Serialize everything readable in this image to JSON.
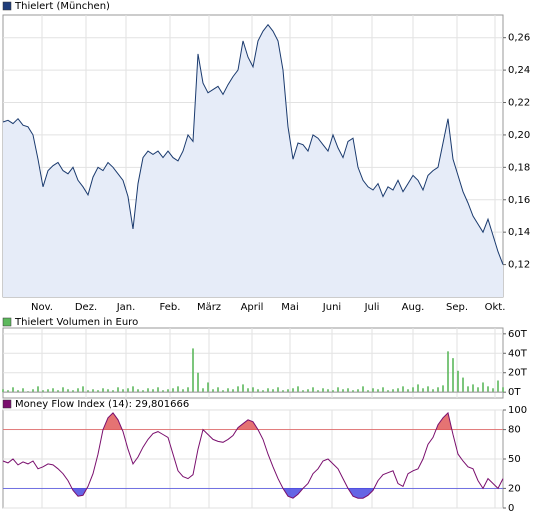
{
  "chart_data": [
    {
      "type": "area",
      "legend": "Thielert (München)",
      "color": "#1a3a6e",
      "fill": "#e6ecf8",
      "legend_color": "#1f3d7a",
      "xlim": [
        0,
        100
      ],
      "ylim": [
        0.1,
        0.274
      ],
      "xticks": [
        {
          "value": 7.8,
          "label": "Nov."
        },
        {
          "value": 16.6,
          "label": "Dez."
        },
        {
          "value": 24.6,
          "label": "Jan."
        },
        {
          "value": 33.4,
          "label": "Feb."
        },
        {
          "value": 41.2,
          "label": "März"
        },
        {
          "value": 49.8,
          "label": "April"
        },
        {
          "value": 57.4,
          "label": "Mai"
        },
        {
          "value": 65.8,
          "label": "Juni"
        },
        {
          "value": 73.8,
          "label": "Juli"
        },
        {
          "value": 82,
          "label": "Aug."
        },
        {
          "value": 90.8,
          "label": "Sep."
        },
        {
          "value": 98.4,
          "label": "Okt."
        }
      ],
      "yticks": [
        {
          "value": 0.12,
          "label": "0,12"
        },
        {
          "value": 0.14,
          "label": "0,14"
        },
        {
          "value": 0.16,
          "label": "0,16"
        },
        {
          "value": 0.18,
          "label": "0,18"
        },
        {
          "value": 0.2,
          "label": "0,20"
        },
        {
          "value": 0.22,
          "label": "0,22"
        },
        {
          "value": 0.24,
          "label": "0,24"
        },
        {
          "value": 0.26,
          "label": "0,26"
        }
      ],
      "values": [
        0.208,
        0.209,
        0.207,
        0.21,
        0.206,
        0.205,
        0.2,
        0.185,
        0.168,
        0.178,
        0.181,
        0.183,
        0.178,
        0.176,
        0.18,
        0.172,
        0.168,
        0.163,
        0.174,
        0.18,
        0.178,
        0.183,
        0.18,
        0.176,
        0.172,
        0.162,
        0.142,
        0.17,
        0.186,
        0.19,
        0.188,
        0.19,
        0.186,
        0.19,
        0.186,
        0.184,
        0.19,
        0.2,
        0.196,
        0.25,
        0.232,
        0.226,
        0.228,
        0.23,
        0.225,
        0.231,
        0.236,
        0.24,
        0.258,
        0.248,
        0.242,
        0.258,
        0.264,
        0.268,
        0.264,
        0.258,
        0.24,
        0.205,
        0.185,
        0.195,
        0.194,
        0.19,
        0.2,
        0.198,
        0.194,
        0.19,
        0.2,
        0.192,
        0.186,
        0.196,
        0.198,
        0.18,
        0.172,
        0.168,
        0.166,
        0.17,
        0.162,
        0.168,
        0.166,
        0.172,
        0.165,
        0.17,
        0.175,
        0.172,
        0.166,
        0.175,
        0.178,
        0.18,
        0.195,
        0.21,
        0.185,
        0.175,
        0.165,
        0.158,
        0.15,
        0.145,
        0.14,
        0.148,
        0.138,
        0.128,
        0.12
      ]
    },
    {
      "type": "bar",
      "legend": "Thielert Volumen in Euro",
      "color": "#5cb85c",
      "legend_color": "#5cb85c",
      "xlim": [
        0,
        100
      ],
      "ylim": [
        -6,
        66
      ],
      "yticks": [
        {
          "value": 0,
          "label": "0T"
        },
        {
          "value": 20,
          "label": "20T"
        },
        {
          "value": 40,
          "label": "40T"
        },
        {
          "value": 60,
          "label": "60T"
        }
      ],
      "values": [
        3,
        2,
        5,
        2,
        4,
        1,
        3,
        6,
        2,
        3,
        4,
        2,
        5,
        3,
        2,
        4,
        6,
        2,
        3,
        2,
        4,
        3,
        2,
        5,
        3,
        4,
        6,
        3,
        2,
        4,
        3,
        5,
        2,
        3,
        4,
        6,
        3,
        5,
        45,
        20,
        4,
        10,
        3,
        5,
        2,
        4,
        3,
        6,
        8,
        4,
        5,
        3,
        2,
        4,
        3,
        5,
        2,
        3,
        4,
        6,
        2,
        3,
        5,
        2,
        4,
        3,
        2,
        5,
        3,
        4,
        2,
        3,
        6,
        2,
        4,
        3,
        5,
        2,
        3,
        4,
        6,
        3,
        5,
        8,
        4,
        6,
        3,
        5,
        7,
        42,
        35,
        22,
        15,
        6,
        8,
        5,
        10,
        6,
        4,
        12,
        5
      ]
    },
    {
      "type": "line",
      "legend": "Money Flow Index (14): 29,801666",
      "color": "#7a0f6e",
      "legend_color": "#7a0f6e",
      "upper_band": 80,
      "upper_color": "#e05a5a",
      "lower_band": 20,
      "lower_color": "#4a4ae0",
      "xlim": [
        0,
        100
      ],
      "ylim": [
        0,
        100
      ],
      "yticks": [
        0,
        20,
        50,
        80,
        100
      ],
      "values": [
        48,
        46,
        50,
        44,
        47,
        45,
        48,
        40,
        42,
        45,
        44,
        40,
        35,
        28,
        18,
        12,
        13,
        22,
        35,
        55,
        80,
        92,
        97,
        90,
        78,
        60,
        45,
        52,
        62,
        70,
        76,
        78,
        75,
        72,
        55,
        38,
        32,
        30,
        34,
        60,
        80,
        75,
        70,
        68,
        67,
        70,
        74,
        82,
        86,
        90,
        88,
        80,
        70,
        55,
        42,
        30,
        20,
        12,
        10,
        14,
        20,
        25,
        35,
        40,
        48,
        50,
        45,
        40,
        30,
        20,
        12,
        10,
        10,
        13,
        18,
        28,
        34,
        36,
        38,
        25,
        22,
        35,
        38,
        40,
        50,
        65,
        72,
        85,
        92,
        97,
        75,
        55,
        48,
        42,
        40,
        28,
        20,
        30,
        25,
        20,
        30
      ]
    }
  ]
}
